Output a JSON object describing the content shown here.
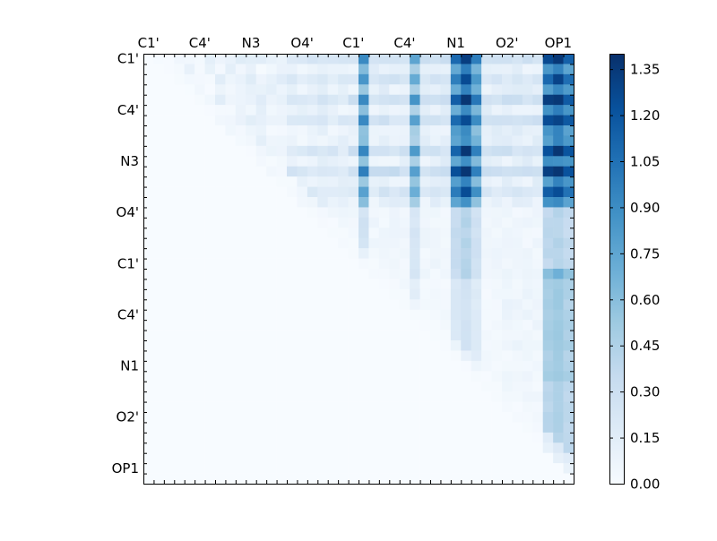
{
  "chart_data": {
    "type": "heatmap",
    "title": "",
    "xlabel": "",
    "ylabel": "",
    "matrix_size": 42,
    "upper_triangular": true,
    "x_tick_labels": [
      "C1'",
      "C4'",
      "N3",
      "O4'",
      "C1'",
      "C4'",
      "N1",
      "O2'",
      "OP1"
    ],
    "y_tick_labels": [
      "C1'",
      "C4'",
      "N3",
      "O4'",
      "C1'",
      "C4'",
      "N1",
      "O2'",
      "OP1"
    ],
    "labeled_tick_rows": [
      0,
      5,
      10,
      15,
      20,
      25,
      30,
      35,
      40
    ],
    "minor_ticks_per_axis": 42,
    "colorbar": {
      "min": 0.0,
      "max": 1.4,
      "ticks": [
        "0.00",
        "0.15",
        "0.30",
        "0.45",
        "0.60",
        "0.75",
        "0.90",
        "1.05",
        "1.20",
        "1.35"
      ],
      "colormap": "Blues",
      "color_stops": [
        "#f7fbff",
        "#deebf7",
        "#c6dbef",
        "#9ecae1",
        "#6baed6",
        "#4292c6",
        "#2171b5",
        "#08519c",
        "#08306b"
      ]
    },
    "hot_columns": [
      {
        "col": 21,
        "weight": 0.55
      },
      {
        "col": 26,
        "weight": 0.45
      },
      {
        "col": 30,
        "weight": 0.75
      },
      {
        "col": 31,
        "weight": 0.95
      },
      {
        "col": 32,
        "weight": 0.6
      },
      {
        "col": 39,
        "weight": 0.85
      },
      {
        "col": 40,
        "weight": 0.95
      },
      {
        "col": 41,
        "weight": 0.8
      }
    ],
    "hot_rows": [
      {
        "row": 0,
        "weight": 0.8
      },
      {
        "row": 2,
        "weight": 0.6
      },
      {
        "row": 4,
        "weight": 0.9
      },
      {
        "row": 6,
        "weight": 0.75
      },
      {
        "row": 9,
        "weight": 0.85
      },
      {
        "row": 11,
        "weight": 1.0
      },
      {
        "row": 13,
        "weight": 0.55
      }
    ],
    "notes_on_values": "Values are concentrated in rows 0-14 and columns 20-41, peaking at about 1.37 near row 11, column 31; the lower triangle is approximately 0."
  }
}
